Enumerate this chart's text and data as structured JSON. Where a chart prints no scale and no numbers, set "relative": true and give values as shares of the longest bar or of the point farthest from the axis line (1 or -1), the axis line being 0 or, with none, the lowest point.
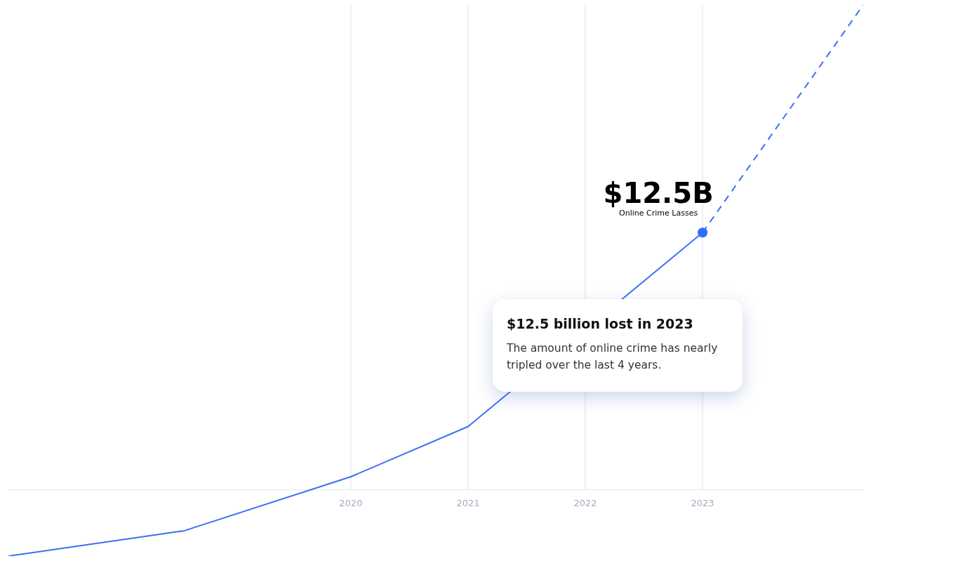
{
  "chart_data": {
    "type": "line",
    "relative": true,
    "xlim": [
      2017.08,
      2024.37
    ],
    "xticks": [
      2020,
      2021,
      2022,
      2023
    ],
    "grid": "x",
    "legend": false,
    "series": [
      {
        "x": [
          2017.08,
          2018.58,
          2020,
          2021,
          2022,
          2023
        ],
        "values": [
          0,
          0.046,
          0.144,
          0.235,
          null,
          0.587
        ],
        "color": "#3d6ef5",
        "marker": "none",
        "line_style": "solid"
      },
      {
        "x": [
          2023,
          2024.37
        ],
        "values": [
          0.587,
          1
        ],
        "color": "#3d6ef5",
        "marker": "none",
        "line_style": "dashed"
      },
      {
        "type": "scatter",
        "x": [
          2023
        ],
        "values": [
          0.587
        ],
        "color": "#2f6bff",
        "marker": "circle"
      }
    ],
    "annotations": [
      {
        "text": "$12.5B",
        "x": 2023,
        "y": 0.587
      },
      {
        "text": "Online Crime Lasses",
        "x": 2023,
        "y": 0.587
      },
      "$12.5 billion lost in 2023",
      "The amount of online crime has nearly tripled over the last 4 years."
    ]
  }
}
